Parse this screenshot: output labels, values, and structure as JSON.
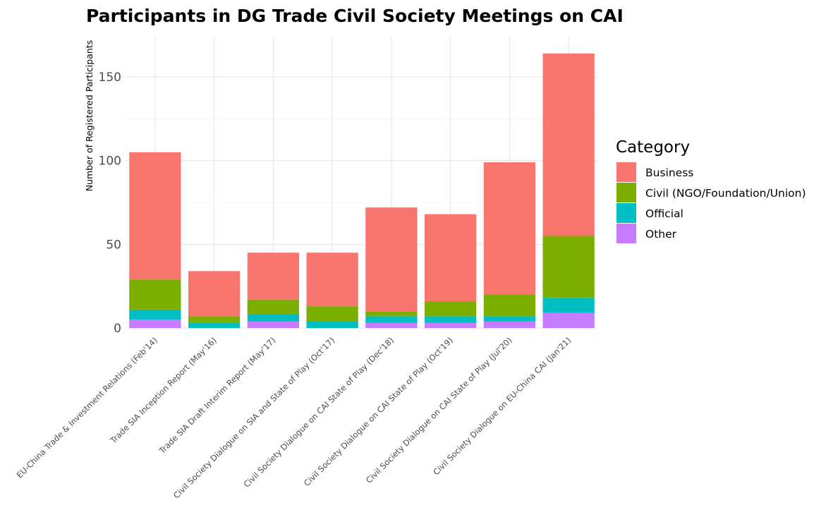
{
  "chart_data": {
    "type": "bar",
    "stacked": true,
    "title": "Participants in DG Trade Civil Society Meetings on CAI",
    "xlabel": "",
    "ylabel": "Number of Registered Participants",
    "ylim": [
      0,
      170
    ],
    "yticks": [
      0,
      50,
      100,
      150
    ],
    "grid": true,
    "legend_position": "right",
    "legend_title": "Category",
    "categories": [
      "EU-China Trade & Investment Relations (Feb'14)",
      "Trade SIA Inception Report (May'16)",
      "Trade SIA Draft Interim Report (May'17)",
      "Civil Society Dialogue on SIA and State of Play (Oct'17)",
      "Civil Society Dialogue on CAI State of Play (Dec'18)",
      "Civil Society Dialogue on CAI State of Play (Oct'19)",
      "Civil Society Dialogue on CAI State of Play (Jul'20)",
      "Civil Society Dialogue on EU-China CAI (Jan'21)"
    ],
    "series": [
      {
        "name": "Other",
        "color": "#C77CFF",
        "values": [
          5,
          0,
          4,
          0,
          3,
          3,
          4,
          9
        ]
      },
      {
        "name": "Official",
        "color": "#00BFC4",
        "values": [
          6,
          3,
          4,
          4,
          4,
          4,
          3,
          9
        ]
      },
      {
        "name": "Civil (NGO/Foundation/Union)",
        "color": "#7CAE00",
        "values": [
          18,
          4,
          9,
          9,
          3,
          9,
          13,
          37
        ]
      },
      {
        "name": "Business",
        "color": "#F8766D",
        "values": [
          76,
          27,
          28,
          32,
          62,
          52,
          79,
          109
        ]
      }
    ],
    "legend_order": [
      "Business",
      "Civil (NGO/Foundation/Union)",
      "Official",
      "Other"
    ]
  }
}
